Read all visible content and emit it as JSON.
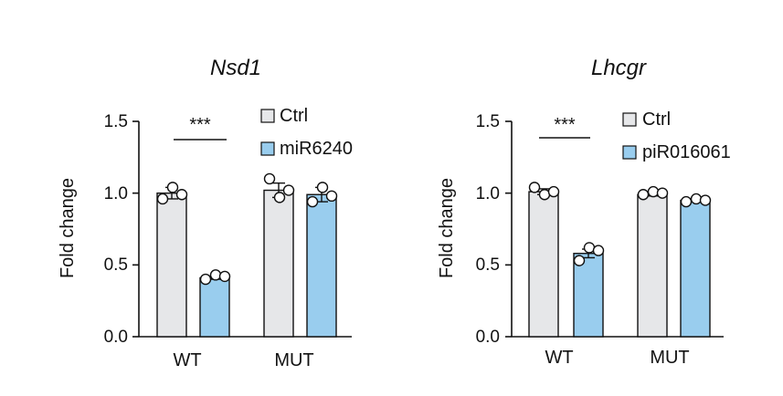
{
  "chart_data": [
    {
      "type": "bar",
      "title": "Nsd1",
      "ylabel": "Fold change",
      "ylim": [
        0,
        1.5
      ],
      "yticks": [
        "0.0",
        "0.5",
        "1.0",
        "1.5"
      ],
      "categories": [
        "WT",
        "MUT"
      ],
      "series": [
        {
          "name": "Ctrl",
          "color": "#e6e7e9",
          "values": [
            1.0,
            1.02
          ],
          "errors": [
            0.04,
            0.05
          ],
          "points": [
            [
              0.96,
              1.04,
              0.99
            ],
            [
              1.1,
              0.97,
              1.02
            ]
          ]
        },
        {
          "name": "miR6240",
          "color": "#99cdee",
          "values": [
            0.41,
            0.99
          ],
          "errors": [
            0.01,
            0.05
          ],
          "points": [
            [
              0.4,
              0.43,
              0.42
            ],
            [
              0.94,
              1.04,
              0.98
            ]
          ]
        }
      ],
      "significance": "***",
      "legend": "top-right"
    },
    {
      "type": "bar",
      "title": "Lhcgr",
      "ylabel": "Fold change",
      "ylim": [
        0,
        1.5
      ],
      "yticks": [
        "0.0",
        "0.5",
        "1.0",
        "1.5"
      ],
      "categories": [
        "WT",
        "MUT"
      ],
      "series": [
        {
          "name": "Ctrl",
          "color": "#e6e7e9",
          "values": [
            1.01,
            0.99
          ],
          "errors": [
            0.02,
            0.01
          ],
          "points": [
            [
              1.04,
              0.99,
              1.01
            ],
            [
              0.99,
              1.01,
              1.0
            ]
          ]
        },
        {
          "name": "piR016061",
          "color": "#99cdee",
          "values": [
            0.58,
            0.95
          ],
          "errors": [
            0.03,
            0.01
          ],
          "points": [
            [
              0.53,
              0.62,
              0.6
            ],
            [
              0.94,
              0.96,
              0.95
            ]
          ]
        }
      ],
      "significance": "***",
      "legend": "top-right"
    }
  ]
}
